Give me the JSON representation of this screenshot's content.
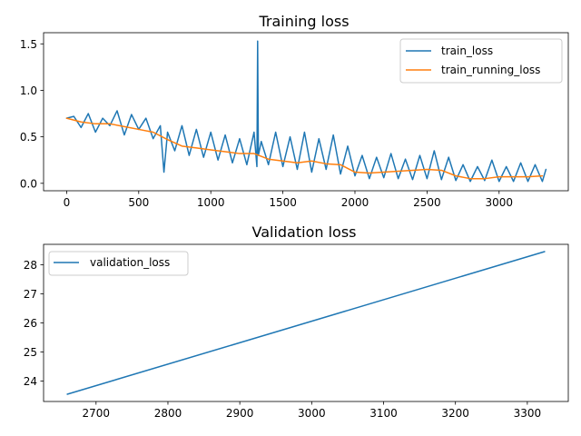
{
  "chart_data": [
    {
      "type": "line",
      "title": "Training loss",
      "xlabel": "",
      "ylabel": "",
      "xlim": [
        -160,
        3480
      ],
      "ylim": [
        -0.08,
        1.62
      ],
      "xticks": [
        0,
        500,
        1000,
        1500,
        2000,
        2500,
        3000
      ],
      "xtick_labels": [
        "0",
        "500",
        "1000",
        "1500",
        "2000",
        "2500",
        "3000"
      ],
      "yticks": [
        0.0,
        0.5,
        1.0,
        1.5
      ],
      "ytick_labels": [
        "0.0",
        "0.5",
        "1.0",
        "1.5"
      ],
      "grid": false,
      "legend_position": "upper right",
      "series": [
        {
          "name": "train_loss",
          "color": "#1f77b4",
          "x": [
            0,
            50,
            100,
            150,
            200,
            250,
            300,
            350,
            400,
            450,
            500,
            550,
            600,
            650,
            675,
            700,
            750,
            800,
            850,
            900,
            950,
            1000,
            1050,
            1100,
            1150,
            1200,
            1250,
            1300,
            1320,
            1325,
            1330,
            1350,
            1400,
            1450,
            1500,
            1550,
            1600,
            1650,
            1700,
            1750,
            1800,
            1850,
            1900,
            1950,
            2000,
            2050,
            2100,
            2150,
            2200,
            2250,
            2300,
            2350,
            2400,
            2450,
            2500,
            2550,
            2600,
            2650,
            2700,
            2750,
            2800,
            2850,
            2900,
            2950,
            3000,
            3050,
            3100,
            3150,
            3200,
            3250,
            3300,
            3325
          ],
          "y": [
            0.7,
            0.72,
            0.6,
            0.75,
            0.55,
            0.7,
            0.62,
            0.78,
            0.52,
            0.74,
            0.58,
            0.7,
            0.48,
            0.62,
            0.12,
            0.55,
            0.35,
            0.62,
            0.3,
            0.58,
            0.28,
            0.55,
            0.25,
            0.52,
            0.22,
            0.48,
            0.2,
            0.55,
            0.18,
            1.53,
            0.3,
            0.45,
            0.2,
            0.55,
            0.18,
            0.5,
            0.15,
            0.55,
            0.12,
            0.48,
            0.15,
            0.52,
            0.1,
            0.4,
            0.08,
            0.3,
            0.05,
            0.28,
            0.06,
            0.32,
            0.05,
            0.26,
            0.04,
            0.3,
            0.05,
            0.35,
            0.04,
            0.28,
            0.03,
            0.2,
            0.02,
            0.18,
            0.03,
            0.25,
            0.02,
            0.18,
            0.02,
            0.22,
            0.02,
            0.2,
            0.02,
            0.15
          ]
        },
        {
          "name": "train_running_loss",
          "color": "#ff7f0e",
          "x": [
            0,
            100,
            200,
            300,
            400,
            500,
            600,
            700,
            800,
            900,
            1000,
            1100,
            1200,
            1300,
            1400,
            1500,
            1600,
            1700,
            1800,
            1900,
            2000,
            2100,
            2200,
            2300,
            2400,
            2500,
            2600,
            2700,
            2800,
            2900,
            3000,
            3100,
            3200,
            3300
          ],
          "y": [
            0.7,
            0.66,
            0.64,
            0.64,
            0.61,
            0.58,
            0.55,
            0.47,
            0.4,
            0.38,
            0.36,
            0.34,
            0.32,
            0.32,
            0.26,
            0.24,
            0.22,
            0.24,
            0.21,
            0.2,
            0.12,
            0.11,
            0.12,
            0.13,
            0.14,
            0.15,
            0.14,
            0.08,
            0.05,
            0.05,
            0.07,
            0.07,
            0.07,
            0.08
          ]
        }
      ]
    },
    {
      "type": "line",
      "title": "Validation loss",
      "xlabel": "",
      "ylabel": "",
      "xlim": [
        2627,
        3357
      ],
      "ylim": [
        23.3,
        28.7
      ],
      "xticks": [
        2700,
        2800,
        2900,
        3000,
        3100,
        3200,
        3300
      ],
      "xtick_labels": [
        "2700",
        "2800",
        "2900",
        "3000",
        "3100",
        "3200",
        "3300"
      ],
      "yticks": [
        24,
        25,
        26,
        27,
        28
      ],
      "ytick_labels": [
        "24",
        "25",
        "26",
        "27",
        "28"
      ],
      "grid": false,
      "legend_position": "upper left",
      "series": [
        {
          "name": "validation_loss",
          "color": "#1f77b4",
          "x": [
            2660,
            3324
          ],
          "y": [
            23.55,
            28.45
          ]
        }
      ]
    }
  ]
}
